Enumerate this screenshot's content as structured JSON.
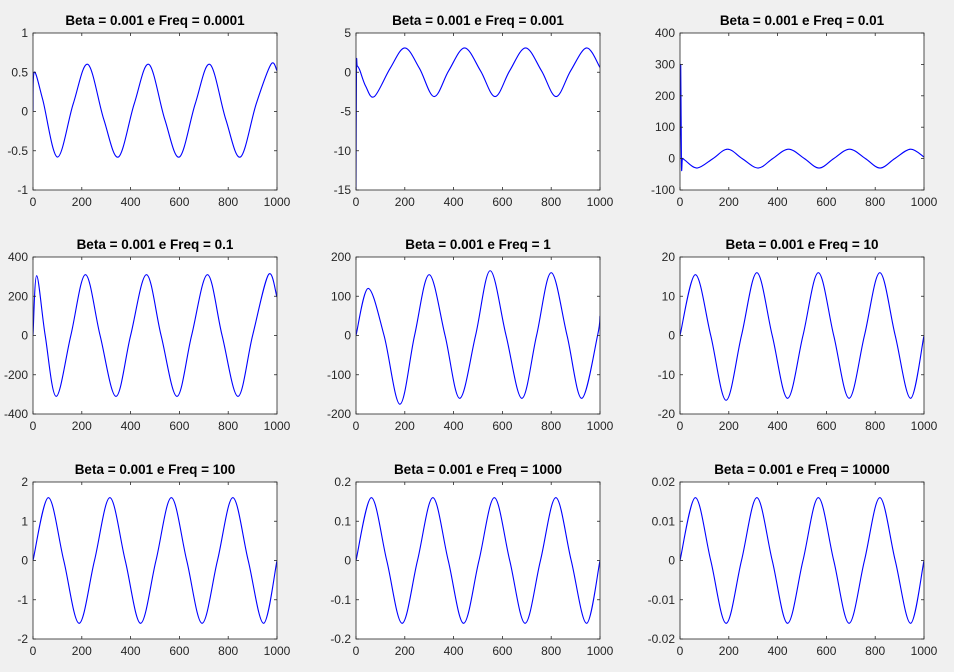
{
  "figure": {
    "background": "#f0f0f0",
    "line_color": "#0000ff"
  },
  "chart_data": [
    {
      "type": "line",
      "title": "Beta = 0.001 e Freq = 0.0001",
      "xlabel": "",
      "ylabel": "",
      "xlim": [
        0,
        1000
      ],
      "ylim": [
        -1,
        1
      ],
      "xticks": [
        0,
        200,
        400,
        600,
        800,
        1000
      ],
      "xtick_labels": [
        "0",
        "200",
        "400",
        "600",
        "800",
        "1000"
      ],
      "yticks": [
        -1,
        -0.5,
        0,
        0.5,
        1
      ],
      "ytick_labels": [
        "-1",
        "-0.5",
        "0",
        "0.5",
        "1"
      ],
      "grid": false,
      "series": [
        {
          "x": [
            0,
            5,
            40,
            100,
            165,
            225,
            290,
            350,
            415,
            475,
            540,
            600,
            665,
            725,
            790,
            850,
            915,
            975,
            1000
          ],
          "y": [
            0.0,
            0.5,
            0.15,
            -0.58,
            0.1,
            0.6,
            -0.1,
            -0.58,
            0.1,
            0.6,
            -0.1,
            -0.58,
            0.1,
            0.6,
            -0.1,
            -0.58,
            0.1,
            0.6,
            0.52
          ]
        }
      ]
    },
    {
      "type": "line",
      "title": "Beta = 0.001 e Freq = 0.001",
      "xlabel": "",
      "ylabel": "",
      "xlim": [
        0,
        1000
      ],
      "ylim": [
        -15,
        5
      ],
      "xticks": [
        0,
        200,
        400,
        600,
        800,
        1000
      ],
      "xtick_labels": [
        "0",
        "200",
        "400",
        "600",
        "800",
        "1000"
      ],
      "yticks": [
        -15,
        -10,
        -5,
        0,
        5
      ],
      "ytick_labels": [
        "-15",
        "-10",
        "-5",
        "0",
        "5"
      ],
      "grid": false,
      "series": [
        {
          "x": [
            0,
            2,
            5,
            15,
            40,
            75,
            140,
            200,
            260,
            320,
            380,
            445,
            510,
            570,
            630,
            695,
            760,
            820,
            880,
            945,
            1000
          ],
          "y": [
            -15,
            0.5,
            0.8,
            0.3,
            -1.8,
            -3.1,
            0.5,
            3.1,
            0.5,
            -3.1,
            0.2,
            3.1,
            0.2,
            -3.1,
            0.2,
            3.1,
            0.2,
            -3.1,
            0.2,
            3.1,
            0.6
          ]
        }
      ]
    },
    {
      "type": "line",
      "title": "Beta = 0.001 e Freq = 0.01",
      "xlabel": "",
      "ylabel": "",
      "xlim": [
        0,
        1000
      ],
      "ylim": [
        -100,
        400
      ],
      "xticks": [
        0,
        200,
        400,
        600,
        800,
        1000
      ],
      "xtick_labels": [
        "0",
        "200",
        "400",
        "600",
        "800",
        "1000"
      ],
      "yticks": [
        -100,
        0,
        100,
        200,
        300,
        400
      ],
      "ytick_labels": [
        "-100",
        "0",
        "100",
        "200",
        "300",
        "400"
      ],
      "grid": false,
      "series": [
        {
          "x": [
            0,
            3,
            6,
            10,
            20,
            70,
            135,
            195,
            255,
            320,
            380,
            445,
            510,
            570,
            630,
            695,
            760,
            820,
            880,
            945,
            1000
          ],
          "y": [
            0,
            300,
            -20,
            0,
            -5,
            -30,
            0,
            30,
            0,
            -30,
            0,
            30,
            0,
            -30,
            0,
            30,
            0,
            -30,
            0,
            30,
            5
          ]
        }
      ]
    },
    {
      "type": "line",
      "title": "Beta = 0.001 e Freq = 0.1",
      "xlabel": "",
      "ylabel": "",
      "xlim": [
        0,
        1000
      ],
      "ylim": [
        -400,
        400
      ],
      "xticks": [
        0,
        200,
        400,
        600,
        800,
        1000
      ],
      "xtick_labels": [
        "0",
        "200",
        "400",
        "600",
        "800",
        "1000"
      ],
      "yticks": [
        -400,
        -200,
        0,
        200,
        400
      ],
      "ytick_labels": [
        "-400",
        "-200",
        "0",
        "200",
        "400"
      ],
      "grid": false,
      "series": [
        {
          "x": [
            0,
            15,
            50,
            95,
            155,
            215,
            275,
            340,
            400,
            465,
            525,
            590,
            650,
            715,
            775,
            840,
            900,
            965,
            1000
          ],
          "y": [
            0,
            305,
            0,
            -310,
            0,
            310,
            0,
            -310,
            0,
            310,
            0,
            -310,
            0,
            310,
            0,
            -310,
            0,
            310,
            195
          ]
        }
      ]
    },
    {
      "type": "line",
      "title": "Beta = 0.001 e Freq = 1",
      "xlabel": "",
      "ylabel": "",
      "xlim": [
        0,
        1000
      ],
      "ylim": [
        -200,
        200
      ],
      "xticks": [
        0,
        200,
        400,
        600,
        800,
        1000
      ],
      "xtick_labels": [
        "0",
        "200",
        "400",
        "600",
        "800",
        "1000"
      ],
      "yticks": [
        -200,
        -100,
        0,
        100,
        200
      ],
      "ytick_labels": [
        "-200",
        "-100",
        "0",
        "100",
        "200"
      ],
      "grid": false,
      "series": [
        {
          "x": [
            0,
            50,
            115,
            180,
            240,
            300,
            365,
            425,
            490,
            550,
            615,
            680,
            740,
            800,
            865,
            925,
            990,
            1000
          ],
          "y": [
            0,
            120,
            0,
            -175,
            0,
            155,
            0,
            -160,
            0,
            165,
            0,
            -160,
            0,
            160,
            0,
            -160,
            0,
            50
          ]
        }
      ]
    },
    {
      "type": "line",
      "title": "Beta = 0.001 e Freq = 10",
      "xlabel": "",
      "ylabel": "",
      "xlim": [
        0,
        1000
      ],
      "ylim": [
        -20,
        20
      ],
      "xticks": [
        0,
        200,
        400,
        600,
        800,
        1000
      ],
      "xtick_labels": [
        "0",
        "200",
        "400",
        "600",
        "800",
        "1000"
      ],
      "yticks": [
        -20,
        -10,
        0,
        10,
        20
      ],
      "ytick_labels": [
        "-20",
        "-10",
        "0",
        "10",
        "20"
      ],
      "grid": false,
      "series": [
        {
          "x": [
            0,
            63,
            126,
            189,
            252,
            315,
            378,
            441,
            504,
            567,
            630,
            693,
            756,
            819,
            882,
            945,
            1000
          ],
          "y": [
            0,
            15.5,
            0,
            -16.5,
            0,
            16,
            0,
            -16,
            0,
            16,
            0,
            -16,
            0,
            16,
            0,
            -16,
            0
          ]
        }
      ]
    },
    {
      "type": "line",
      "title": "Beta = 0.001 e Freq = 100",
      "xlabel": "",
      "ylabel": "",
      "xlim": [
        0,
        1000
      ],
      "ylim": [
        -2,
        2
      ],
      "xticks": [
        0,
        200,
        400,
        600,
        800,
        1000
      ],
      "xtick_labels": [
        "0",
        "200",
        "400",
        "600",
        "800",
        "1000"
      ],
      "yticks": [
        -2,
        -1,
        0,
        1,
        2
      ],
      "ytick_labels": [
        "-2",
        "-1",
        "0",
        "1",
        "2"
      ],
      "grid": false,
      "series": [
        {
          "x": [
            0,
            63,
            126,
            189,
            252,
            315,
            378,
            441,
            504,
            567,
            630,
            693,
            756,
            819,
            882,
            945,
            1000
          ],
          "y": [
            0,
            1.6,
            0,
            -1.6,
            0,
            1.6,
            0,
            -1.6,
            0,
            1.6,
            0,
            -1.6,
            0,
            1.6,
            0,
            -1.6,
            0
          ]
        }
      ]
    },
    {
      "type": "line",
      "title": "Beta = 0.001 e Freq = 1000",
      "xlabel": "",
      "ylabel": "",
      "xlim": [
        0,
        1000
      ],
      "ylim": [
        -0.2,
        0.2
      ],
      "xticks": [
        0,
        200,
        400,
        600,
        800,
        1000
      ],
      "xtick_labels": [
        "0",
        "200",
        "400",
        "600",
        "800",
        "1000"
      ],
      "yticks": [
        -0.2,
        -0.1,
        0,
        0.1,
        0.2
      ],
      "ytick_labels": [
        "-0.2",
        "-0.1",
        "0",
        "0.1",
        "0.2"
      ],
      "grid": false,
      "series": [
        {
          "x": [
            0,
            63,
            126,
            189,
            252,
            315,
            378,
            441,
            504,
            567,
            630,
            693,
            756,
            819,
            882,
            945,
            1000
          ],
          "y": [
            0,
            0.16,
            0,
            -0.16,
            0,
            0.16,
            0,
            -0.16,
            0,
            0.16,
            0,
            -0.16,
            0,
            0.16,
            0,
            -0.16,
            0
          ]
        }
      ]
    },
    {
      "type": "line",
      "title": "Beta = 0.001 e Freq = 10000",
      "xlabel": "",
      "ylabel": "",
      "xlim": [
        0,
        1000
      ],
      "ylim": [
        -0.02,
        0.02
      ],
      "xticks": [
        0,
        200,
        400,
        600,
        800,
        1000
      ],
      "xtick_labels": [
        "0",
        "200",
        "400",
        "600",
        "800",
        "1000"
      ],
      "yticks": [
        -0.02,
        -0.01,
        0,
        0.01,
        0.02
      ],
      "ytick_labels": [
        "-0.02",
        "-0.01",
        "0",
        "0.01",
        "0.02"
      ],
      "grid": false,
      "series": [
        {
          "x": [
            0,
            63,
            126,
            189,
            252,
            315,
            378,
            441,
            504,
            567,
            630,
            693,
            756,
            819,
            882,
            945,
            1000
          ],
          "y": [
            0,
            0.016,
            0,
            -0.016,
            0,
            0.016,
            0,
            -0.016,
            0,
            0.016,
            0,
            -0.016,
            0,
            0.016,
            0,
            -0.016,
            0
          ]
        }
      ]
    }
  ]
}
